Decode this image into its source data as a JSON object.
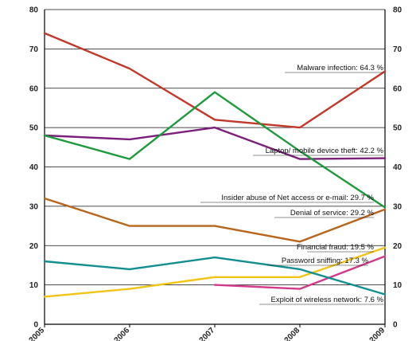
{
  "chart_data": {
    "type": "line",
    "x": [
      "2005",
      "2006",
      "2007",
      "2008",
      "2009"
    ],
    "ylim": [
      0,
      80
    ],
    "yticks": [
      0,
      10,
      20,
      30,
      40,
      50,
      60,
      70,
      80
    ],
    "grid": "horizontal",
    "axes": "left and right, duplicated tick labels",
    "series": [
      {
        "name": "Malware infection:",
        "label": "64.3 %",
        "color": "#c0392b",
        "values": [
          74,
          65,
          52,
          50,
          64.3
        ]
      },
      {
        "name": "Laptop/ mobile device theft:",
        "label": "42.2 %",
        "color": "#7b1f7a",
        "values": [
          48,
          47,
          50,
          42,
          42.2
        ]
      },
      {
        "name": "Insider abuse of Net access or e-mail:",
        "label": "29.7 %",
        "color": "#1e9a3c",
        "values": [
          48,
          42,
          59,
          44,
          29.7
        ]
      },
      {
        "name": "Denial of service:",
        "label": "29.2 %",
        "color": "#b8651e",
        "values": [
          32,
          25,
          25,
          21,
          29.2
        ]
      },
      {
        "name": "Financial fraud:",
        "label": "19.5 %",
        "color": "#f2c418",
        "values": [
          7,
          9,
          12,
          12,
          19.5
        ]
      },
      {
        "name": "Password sniffing:",
        "label": "17.3 %",
        "color": "#d23a8c",
        "values": [
          null,
          null,
          10,
          9,
          17.3
        ]
      },
      {
        "name": "Exploit of wireless network:",
        "label": "7.6 %",
        "color": "#148f8f",
        "values": [
          16,
          14,
          17,
          14,
          7.6
        ]
      }
    ]
  }
}
